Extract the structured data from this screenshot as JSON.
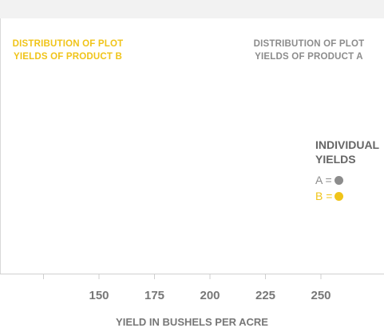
{
  "chart_data": {
    "type": "scatter",
    "title": "",
    "xlabel": "YIELD IN BUSHELS PER ACRE",
    "ylabel": "",
    "x_ticks": [
      125,
      150,
      175,
      200,
      225,
      250
    ],
    "x_tick_labels": [
      "",
      "150",
      "175",
      "200",
      "225",
      "250"
    ],
    "xlim": [
      105,
      278
    ],
    "annotations": {
      "dist_b": "DISTRIBUTION OF PLOT YIELDS OF PRODUCT B",
      "dist_a": "DISTRIBUTION OF PLOT YIELDS OF PRODUCT A"
    },
    "legend": {
      "title": "INDIVIDUAL YIELDS",
      "placement": "right",
      "entries": [
        {
          "label": "A =",
          "color": "#8c8c8c"
        },
        {
          "label": "B =",
          "color": "#f0c419"
        }
      ]
    },
    "series": [
      {
        "name": "A",
        "color": "#8c8c8c",
        "values": []
      },
      {
        "name": "B",
        "color": "#f0c419",
        "values": []
      }
    ],
    "grid": false
  }
}
